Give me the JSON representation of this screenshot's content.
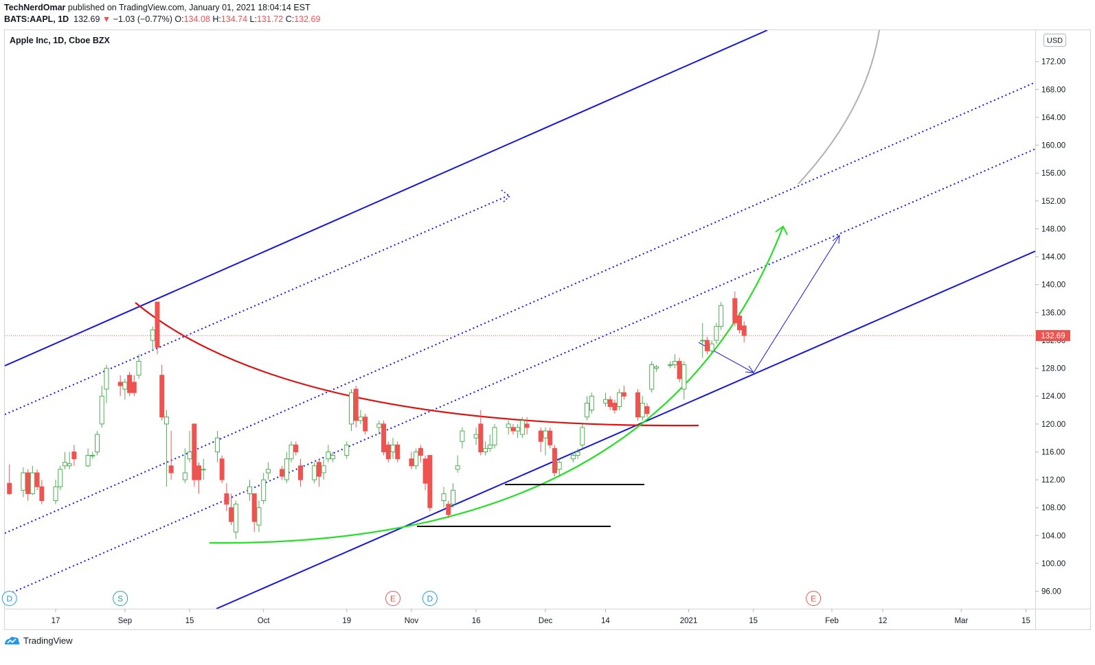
{
  "header": {
    "author": "TechNerdOmar",
    "published_text": " published on TradingView.com, January 01, 2021 18:04:14 EST",
    "symbol": "BATS:AAPL, 1D",
    "last": "132.69",
    "change_arrow": "▼",
    "change": "−1.03 (−0.77%)",
    "o_label": "O:",
    "o_value": "134.08",
    "h_label": "H:",
    "h_value": "134.74",
    "l_label": "L:",
    "l_value": "131.72",
    "c_label": "C:",
    "c_value": "132.69"
  },
  "pane": {
    "title": "Apple Inc, 1D, Cboe BZX",
    "currency": "USD",
    "last_price_label": "132.69"
  },
  "footer": {
    "brand": "TradingView"
  },
  "colors": {
    "up": "#4caf50",
    "down": "#ef5350",
    "channel": "#1515e0",
    "arc_red": "#e01010",
    "arc_green": "#22e022",
    "price_line": "#ef5350"
  },
  "event_markers": [
    {
      "letter": "D",
      "color": "#2196f3",
      "date": "2020-08-07"
    },
    {
      "letter": "S",
      "color": "#26a69a",
      "date": "2020-08-31"
    },
    {
      "letter": "E",
      "color": "#ef5350",
      "date": "2020-10-29"
    },
    {
      "letter": "D",
      "color": "#2196f3",
      "date": "2020-11-06"
    },
    {
      "letter": "E",
      "color": "#ef5350",
      "date": "2021-01-28"
    }
  ],
  "chart_data": {
    "type": "candlestick",
    "title": "Apple Inc, 1D, Cboe BZX",
    "currency": "USD",
    "y_ticks": [
      "96.00",
      "100.00",
      "104.00",
      "108.00",
      "112.00",
      "116.00",
      "120.00",
      "124.00",
      "128.00",
      "132.00",
      "136.00",
      "140.00",
      "144.00",
      "148.00",
      "152.00",
      "156.00",
      "160.00",
      "164.00",
      "168.00",
      "172.00"
    ],
    "x_ticks": [
      {
        "label": "17",
        "date": "2020-08-17"
      },
      {
        "label": "Sep",
        "date": "2020-09-01"
      },
      {
        "label": "15",
        "date": "2020-09-15"
      },
      {
        "label": "Oct",
        "date": "2020-10-01"
      },
      {
        "label": "19",
        "date": "2020-10-19"
      },
      {
        "label": "Nov",
        "date": "2020-11-02"
      },
      {
        "label": "16",
        "date": "2020-11-16"
      },
      {
        "label": "Dec",
        "date": "2020-12-01"
      },
      {
        "label": "14",
        "date": "2020-12-14"
      },
      {
        "label": "2021",
        "date": "2021-01-01"
      },
      {
        "label": "15",
        "date": "2021-01-15"
      },
      {
        "label": "Feb",
        "date": "2021-02-01"
      },
      {
        "label": "12",
        "date": "2021-02-12"
      },
      {
        "label": "Mar",
        "date": "2021-03-01"
      },
      {
        "label": "15",
        "date": "2021-03-15"
      }
    ],
    "y_range": [
      93.5,
      176.5
    ],
    "x_range": [
      "2020-08-06",
      "2021-03-17"
    ],
    "last_price": 132.69,
    "candles": [
      [
        "2020-08-07",
        111.5,
        110.0,
        114.2,
        109.8
      ],
      [
        "2020-08-10",
        110.5,
        113.0,
        113.8,
        109.5
      ],
      [
        "2020-08-11",
        113.0,
        110.0,
        113.5,
        109.0
      ],
      [
        "2020-08-12",
        110.0,
        113.0,
        114.0,
        109.8
      ],
      [
        "2020-08-13",
        113.0,
        111.0,
        113.5,
        110.5
      ],
      [
        "2020-08-14",
        111.0,
        109.0,
        112.0,
        108.5
      ],
      [
        "2020-08-17",
        109.0,
        111.0,
        112.0,
        108.5
      ],
      [
        "2020-08-18",
        111.0,
        113.5,
        114.0,
        110.5
      ],
      [
        "2020-08-19",
        114.0,
        114.5,
        116.0,
        113.5
      ],
      [
        "2020-08-20",
        114.0,
        114.3,
        116.0,
        113.5
      ],
      [
        "2020-08-21",
        116.0,
        115.0,
        117.0,
        114.0
      ],
      [
        "2020-08-24",
        114.0,
        115.5,
        116.5,
        113.8
      ],
      [
        "2020-08-25",
        115.5,
        115.5,
        116.0,
        115.0
      ],
      [
        "2020-08-26",
        116.0,
        118.5,
        119.0,
        115.5
      ],
      [
        "2020-08-27",
        120.0,
        124.0,
        125.5,
        119.5
      ],
      [
        "2020-08-28",
        125.0,
        128.0,
        128.5,
        123.0
      ],
      [
        "2020-08-31",
        126.0,
        125.5,
        127.0,
        124.0
      ],
      [
        "2020-09-01",
        125.0,
        126.0,
        126.5,
        123.5
      ],
      [
        "2020-09-02",
        127.0,
        124.5,
        127.5,
        124.0
      ],
      [
        "2020-09-03",
        126.0,
        124.5,
        127.0,
        124.0
      ],
      [
        "2020-09-04",
        127.0,
        129.0,
        130.0,
        126.5
      ],
      [
        "2020-09-07",
        132.0,
        133.5,
        134.0,
        130.5
      ],
      [
        "2020-09-08",
        137.5,
        131.0,
        137.5,
        130.0
      ],
      [
        "2020-09-09",
        127.0,
        121.0,
        128.5,
        120.5
      ],
      [
        "2020-09-10",
        120.0,
        121.0,
        122.0,
        111.0
      ],
      [
        "2020-09-11",
        114.0,
        113.0,
        119.0,
        112.0
      ],
      [
        "2020-09-14",
        112.0,
        113.0,
        116.5,
        111.5
      ],
      [
        "2020-09-15",
        115.0,
        116.0,
        119.0,
        114.5
      ],
      [
        "2020-09-16",
        120.0,
        112.0,
        120.0,
        111.0
      ],
      [
        "2020-09-17",
        114.0,
        112.0,
        114.5,
        110.0
      ],
      [
        "2020-09-18",
        113.5,
        113.5,
        115.0,
        112.0
      ],
      [
        "2020-09-21",
        116.0,
        118.0,
        119.0,
        114.5
      ],
      [
        "2020-09-22",
        115.0,
        112.0,
        115.5,
        111.5
      ],
      [
        "2020-09-23",
        110.0,
        108.5,
        111.5,
        107.5
      ],
      [
        "2020-09-24",
        108.0,
        106.0,
        110.0,
        105.5
      ],
      [
        "2020-09-25",
        104.5,
        108.5,
        109.0,
        103.5
      ],
      [
        "2020-09-28",
        110.0,
        111.0,
        112.0,
        109.0
      ],
      [
        "2020-09-29",
        110.0,
        106.0,
        110.0,
        104.5
      ],
      [
        "2020-09-30",
        105.5,
        108.0,
        109.0,
        104.5
      ],
      [
        "2020-10-01",
        109.0,
        112.0,
        113.0,
        108.5
      ],
      [
        "2020-10-02",
        113.0,
        113.5,
        114.5,
        112.0
      ],
      [
        "2020-10-05",
        113.5,
        112.5,
        114.0,
        112.0
      ],
      [
        "2020-10-06",
        112.0,
        115.0,
        116.0,
        111.5
      ],
      [
        "2020-10-07",
        115.0,
        117.0,
        117.5,
        114.5
      ],
      [
        "2020-10-08",
        117.0,
        116.0,
        117.5,
        115.5
      ],
      [
        "2020-10-09",
        114.0,
        112.0,
        115.0,
        111.0
      ],
      [
        "2020-10-12",
        112.0,
        114.0,
        114.5,
        111.5
      ],
      [
        "2020-10-13",
        114.5,
        112.5,
        115.0,
        111.0
      ],
      [
        "2020-10-14",
        113.0,
        114.0,
        115.0,
        112.0
      ],
      [
        "2020-10-15",
        115.0,
        116.0,
        117.0,
        114.5
      ],
      [
        "2020-10-16",
        115.0,
        115.5,
        116.0,
        114.5
      ],
      [
        "2020-10-19",
        115.5,
        117.0,
        117.5,
        115.0
      ],
      [
        "2020-10-20",
        120.0,
        124.5,
        125.0,
        119.0
      ],
      [
        "2020-10-21",
        125.0,
        120.5,
        125.5,
        119.5
      ],
      [
        "2020-10-22",
        120.5,
        121.0,
        122.0,
        120.0
      ],
      [
        "2020-10-23",
        121.0,
        119.0,
        121.5,
        118.5
      ],
      [
        "2020-10-26",
        119.5,
        120.0,
        120.5,
        118.5
      ],
      [
        "2020-10-27",
        120.0,
        116.0,
        120.5,
        115.5
      ],
      [
        "2020-10-28",
        117.0,
        115.0,
        117.5,
        114.5
      ],
      [
        "2020-10-29",
        116.0,
        117.0,
        118.0,
        115.0
      ],
      [
        "2020-10-30",
        117.0,
        115.0,
        117.5,
        114.5
      ],
      [
        "2020-11-02",
        115.0,
        114.0,
        116.0,
        113.5
      ],
      [
        "2020-11-03",
        114.0,
        116.0,
        116.5,
        113.5
      ],
      [
        "2020-11-04",
        116.5,
        115.5,
        117.0,
        114.5
      ],
      [
        "2020-11-05",
        115.0,
        111.5,
        115.5,
        110.5
      ],
      [
        "2020-11-06",
        115.5,
        108.0,
        115.5,
        107.5
      ],
      [
        "2020-11-09",
        109.0,
        110.0,
        111.0,
        108.0
      ],
      [
        "2020-11-10",
        108.5,
        107.0,
        109.0,
        106.5
      ],
      [
        "2020-11-11",
        108.5,
        110.5,
        111.5,
        108.0
      ],
      [
        "2020-11-12",
        113.5,
        114.0,
        115.5,
        113.0
      ],
      [
        "2020-11-13",
        117.5,
        119.0,
        119.5,
        116.5
      ],
      [
        "2020-11-16",
        118.0,
        118.5,
        119.5,
        117.0
      ],
      [
        "2020-11-17",
        120.0,
        116.0,
        122.0,
        115.5
      ],
      [
        "2020-11-18",
        116.0,
        116.5,
        117.5,
        115.5
      ],
      [
        "2020-11-19",
        116.5,
        117.0,
        118.5,
        116.0
      ],
      [
        "2020-11-20",
        117.0,
        119.5,
        120.0,
        116.5
      ],
      [
        "2020-11-23",
        119.5,
        120.0,
        120.5,
        118.5
      ],
      [
        "2020-11-24",
        119.5,
        119.0,
        120.0,
        118.5
      ],
      [
        "2020-11-25",
        119.0,
        119.5,
        120.0,
        118.0
      ],
      [
        "2020-11-26",
        118.5,
        120.5,
        121.0,
        118.0
      ],
      [
        "2020-11-27",
        120.0,
        119.5,
        121.0,
        118.5
      ],
      [
        "2020-11-30",
        119.0,
        117.5,
        119.5,
        116.0
      ],
      [
        "2020-12-01",
        118.0,
        119.0,
        119.5,
        115.5
      ],
      [
        "2020-12-02",
        119.0,
        117.0,
        119.5,
        116.5
      ],
      [
        "2020-12-03",
        116.5,
        113.0,
        117.0,
        112.5
      ],
      [
        "2020-12-04",
        113.5,
        114.5,
        115.0,
        112.5
      ],
      [
        "2020-12-07",
        115.0,
        115.5,
        116.0,
        114.5
      ],
      [
        "2020-12-08",
        115.5,
        116.0,
        116.5,
        115.0
      ],
      [
        "2020-12-09",
        117.0,
        119.5,
        120.0,
        116.5
      ],
      [
        "2020-12-10",
        121.0,
        123.0,
        124.0,
        120.5
      ],
      [
        "2020-12-11",
        122.0,
        124.0,
        124.5,
        121.5
      ],
      [
        "2020-12-14",
        123.0,
        123.5,
        124.5,
        122.5
      ],
      [
        "2020-12-15",
        123.5,
        122.5,
        124.0,
        122.0
      ],
      [
        "2020-12-16",
        123.0,
        122.0,
        123.5,
        121.5
      ],
      [
        "2020-12-17",
        122.5,
        124.5,
        125.0,
        122.0
      ],
      [
        "2020-12-18",
        124.5,
        124.0,
        125.5,
        123.5
      ],
      [
        "2020-12-21",
        124.5,
        121.0,
        125.0,
        120.5
      ],
      [
        "2020-12-22",
        121.0,
        123.0,
        124.0,
        120.5
      ],
      [
        "2020-12-23",
        122.5,
        121.5,
        123.0,
        121.0
      ],
      [
        "2020-12-24",
        125.0,
        128.5,
        129.0,
        124.5
      ],
      [
        "2020-12-25",
        128.0,
        128.2,
        128.5,
        127.5
      ],
      [
        "2020-12-28",
        128.5,
        128.5,
        129.0,
        128.0
      ],
      [
        "2020-12-29",
        128.5,
        129.0,
        130.0,
        128.0
      ],
      [
        "2020-12-30",
        129.0,
        126.5,
        129.5,
        126.0
      ],
      [
        "2020-12-31",
        125.0,
        128.5,
        129.0,
        123.5
      ],
      [
        "2021-01-04",
        132.0,
        132.0,
        134.5,
        129.5
      ],
      [
        "2021-01-05",
        132.0,
        130.5,
        132.5,
        130.0
      ],
      [
        "2021-01-06",
        130.5,
        131.5,
        132.0,
        130.0
      ],
      [
        "2021-01-07",
        132.0,
        134.0,
        134.5,
        131.5
      ],
      [
        "2021-01-08",
        134.0,
        137.0,
        137.5,
        133.5
      ],
      [
        "2021-01-11",
        138.0,
        134.5,
        139.0,
        134.0
      ],
      [
        "2021-01-12",
        135.5,
        133.5,
        136.0,
        133.0
      ],
      [
        "2021-01-13",
        134.08,
        132.69,
        134.74,
        131.72
      ]
    ]
  }
}
